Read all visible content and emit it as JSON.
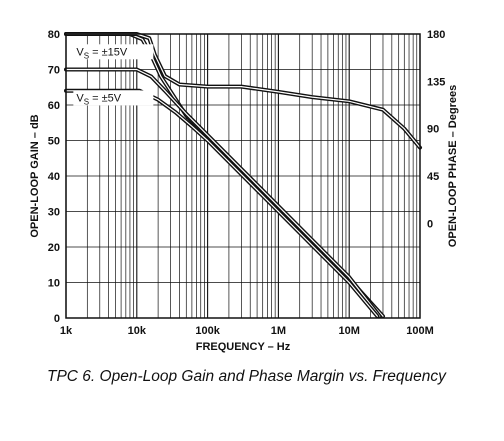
{
  "caption": {
    "label": "TPC 6.",
    "text": "Open-Loop Gain and Phase Margin vs. Frequency"
  },
  "chart_data": {
    "type": "line",
    "xlabel": "FREQUENCY – Hz",
    "ylabel": "OPEN-LOOP GAIN – dB",
    "y2label": "OPEN-LOOP PHASE – Degrees",
    "x_scale": "log",
    "xlim": [
      1000,
      100000000
    ],
    "ylim": [
      0,
      80
    ],
    "y2lim": [
      -90,
      180
    ],
    "grid": true,
    "x_ticks": [
      {
        "value": 1000,
        "label": "1k"
      },
      {
        "value": 10000,
        "label": "10k"
      },
      {
        "value": 100000,
        "label": "100k"
      },
      {
        "value": 1000000,
        "label": "1M"
      },
      {
        "value": 10000000,
        "label": "10M"
      },
      {
        "value": 100000000,
        "label": "100M"
      }
    ],
    "y_ticks": [
      0,
      10,
      20,
      30,
      40,
      50,
      60,
      70,
      80
    ],
    "y2_ticks": [
      {
        "value": 0,
        "label": "0"
      },
      {
        "value": 45,
        "label": "45"
      },
      {
        "value": 90,
        "label": "90"
      },
      {
        "value": 135,
        "label": "135"
      },
      {
        "value": 180,
        "label": "180"
      }
    ],
    "annotations": [
      {
        "label": "V",
        "sub": "S",
        "rest": " = ±15V",
        "x": 1400,
        "y": 74
      },
      {
        "label": "V",
        "sub": "S",
        "rest": " = ±5V",
        "x": 1400,
        "y": 61
      }
    ],
    "series": [
      {
        "axis": "left",
        "x": [
          1000,
          8000,
          12000,
          16000,
          22000,
          50000,
          100000,
          1000000,
          10000000,
          30000000
        ],
        "y": [
          80,
          80,
          78.5,
          74,
          68,
          57,
          51,
          31,
          11,
          0.5
        ]
      },
      {
        "axis": "left",
        "x": [
          1000,
          10000,
          16000,
          25000,
          50000,
          100000,
          1000000,
          10000000,
          27000000
        ],
        "y": [
          70,
          70,
          68,
          64,
          57.5,
          51.5,
          31.5,
          11.5,
          0.5
        ]
      },
      {
        "axis": "left",
        "x": [
          1000,
          11000,
          20000,
          35000,
          60000,
          100000,
          1000000,
          10000000,
          25000000
        ],
        "y": [
          64,
          64,
          61.5,
          58,
          54,
          50,
          30,
          10,
          0.5
        ]
      },
      {
        "axis": "right",
        "x": [
          1000,
          10000,
          15000,
          18000,
          25000,
          40000,
          100000,
          300000,
          1000000,
          3000000,
          10000000,
          30000000,
          60000000,
          100000000
        ],
        "y": [
          180,
          180,
          176,
          160,
          140,
          132,
          130,
          130,
          125,
          120,
          116,
          108,
          90,
          72
        ]
      }
    ]
  }
}
